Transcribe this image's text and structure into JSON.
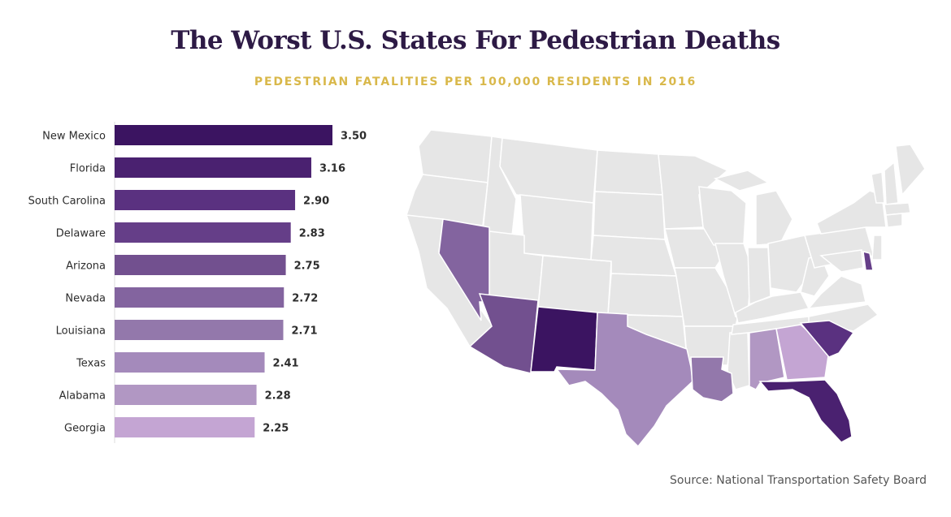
{
  "title": "The Worst U.S. States For Pedestrian Deaths",
  "subtitle": "PEDESTRIAN FATALITIES PER 100,000 RESIDENTS IN 2016",
  "source": "Source: National Transportation Safety Board",
  "chart_data": {
    "type": "bar",
    "orientation": "horizontal",
    "title": "The Worst U.S. States For Pedestrian Deaths",
    "subtitle": "PEDESTRIAN FATALITIES PER 100,000 RESIDENTS IN 2016",
    "categories": [
      "New Mexico",
      "Florida",
      "South Carolina",
      "Delaware",
      "Arizona",
      "Nevada",
      "Louisiana",
      "Texas",
      "Alabama",
      "Georgia"
    ],
    "values": [
      3.5,
      3.16,
      2.9,
      2.83,
      2.75,
      2.72,
      2.71,
      2.41,
      2.28,
      2.25
    ],
    "value_labels": [
      "3.50",
      "3.16",
      "2.90",
      "2.83",
      "2.75",
      "2.72",
      "2.71",
      "2.41",
      "2.28",
      "2.25"
    ],
    "colors": [
      "#3b1461",
      "#4a2170",
      "#5a3180",
      "#653e88",
      "#72508f",
      "#83649f",
      "#9378ab",
      "#a48abb",
      "#b197c3",
      "#c4a5d3"
    ],
    "xlim": [
      0,
      3.5
    ],
    "grid": false,
    "legend": "none"
  },
  "map": {
    "base_color": "#e6e6e6",
    "highlighted_states": [
      {
        "state": "New Mexico",
        "color": "#3b1461"
      },
      {
        "state": "Florida",
        "color": "#4a2170"
      },
      {
        "state": "South Carolina",
        "color": "#5a3180"
      },
      {
        "state": "Delaware",
        "color": "#653e88"
      },
      {
        "state": "Arizona",
        "color": "#72508f"
      },
      {
        "state": "Nevada",
        "color": "#83649f"
      },
      {
        "state": "Louisiana",
        "color": "#9378ab"
      },
      {
        "state": "Texas",
        "color": "#a48abb"
      },
      {
        "state": "Alabama",
        "color": "#b197c3"
      },
      {
        "state": "Georgia",
        "color": "#c4a5d3"
      }
    ]
  }
}
